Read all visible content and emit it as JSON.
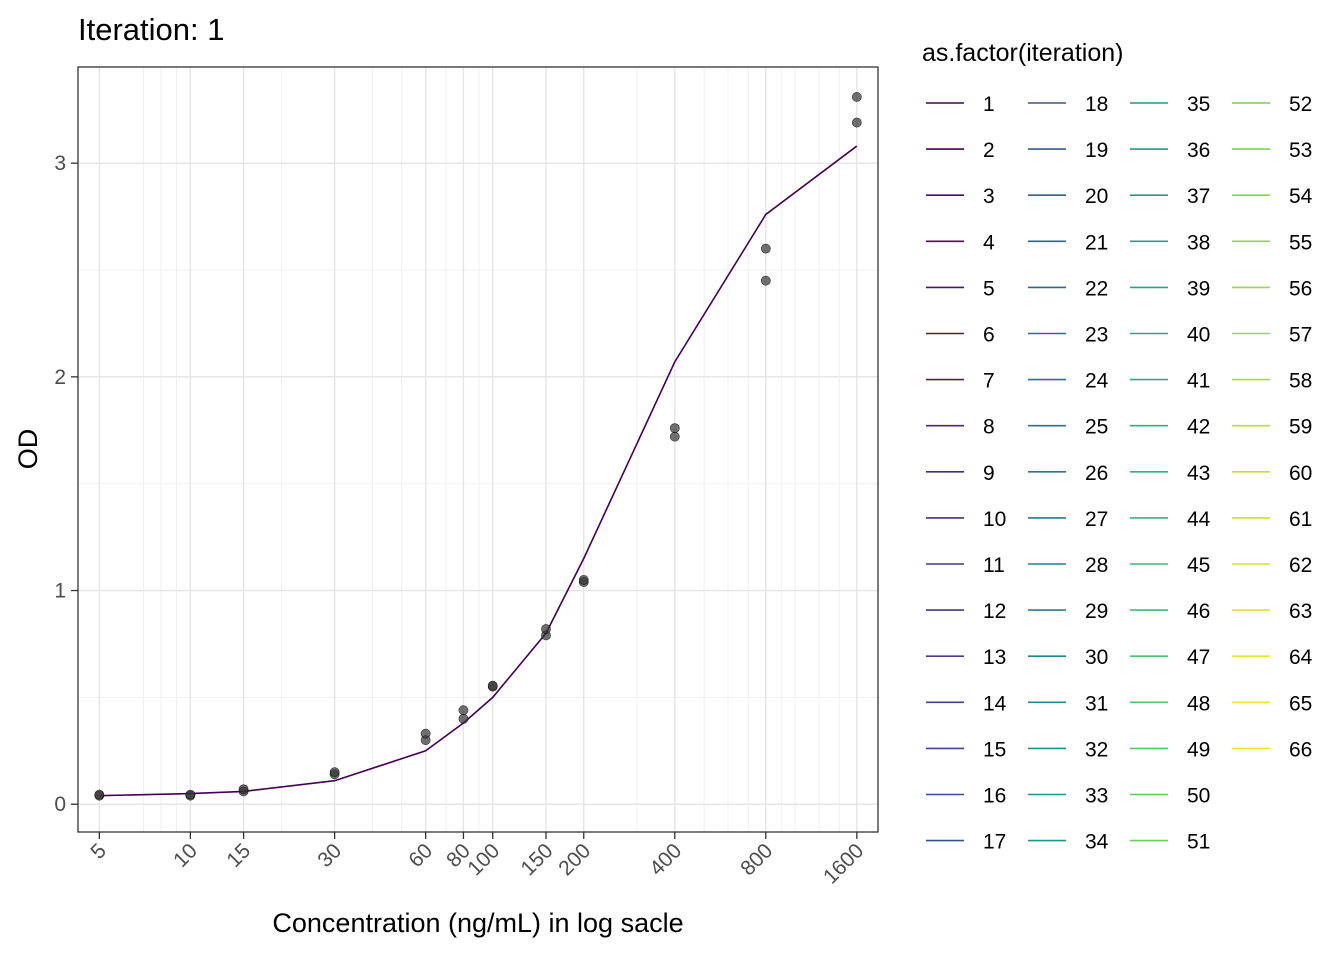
{
  "chart_data": {
    "type": "line",
    "title": "Iteration: 1",
    "xlabel": "Concentration (ng/mL) in log sacle",
    "ylabel": "OD",
    "x_scale": "log10",
    "xlim": [
      4.25,
      1880
    ],
    "ylim": [
      -0.13,
      3.45
    ],
    "x_ticks": [
      5,
      10,
      15,
      30,
      60,
      80,
      100,
      150,
      200,
      400,
      800,
      1600
    ],
    "x_tick_labels": [
      "5",
      "10",
      "15",
      "30",
      "60",
      "80",
      "100",
      "150",
      "200",
      "400",
      "800",
      "1600"
    ],
    "x_minor_breaks": [
      7,
      8,
      9,
      20,
      40,
      50,
      70,
      90,
      300,
      500,
      600,
      700,
      900,
      1000,
      1200,
      1400
    ],
    "y_ticks": [
      0,
      1,
      2,
      3
    ],
    "y_tick_labels": [
      "0",
      "1",
      "2",
      "3"
    ],
    "y_minor_breaks": [
      0.5,
      1.5,
      2.5
    ],
    "grid": true,
    "series": [
      {
        "kind": "line",
        "color": "#440154",
        "x": [
          5,
          10,
          15,
          30,
          60,
          80,
          100,
          150,
          200,
          400,
          800,
          1600
        ],
        "y": [
          0.04,
          0.05,
          0.06,
          0.11,
          0.25,
          0.38,
          0.5,
          0.8,
          1.15,
          2.07,
          2.76,
          3.08
        ]
      },
      {
        "kind": "points",
        "color": "#333333",
        "x": [
          5,
          5,
          10,
          10,
          15,
          15,
          30,
          30,
          60,
          60,
          80,
          80,
          100,
          100,
          150,
          150,
          200,
          200,
          400,
          400,
          800,
          800,
          1600,
          1600
        ],
        "y": [
          0.04,
          0.045,
          0.04,
          0.045,
          0.06,
          0.07,
          0.14,
          0.15,
          0.3,
          0.33,
          0.4,
          0.44,
          0.55,
          0.555,
          0.79,
          0.82,
          1.04,
          1.05,
          1.72,
          1.76,
          2.45,
          2.6,
          3.19,
          3.31
        ]
      }
    ],
    "legend": {
      "title": "as.factor(iteration)",
      "placement": "right",
      "columns": 4,
      "palette": "viridis",
      "entries": [
        "1",
        "2",
        "3",
        "4",
        "5",
        "6",
        "7",
        "8",
        "9",
        "10",
        "11",
        "12",
        "13",
        "14",
        "15",
        "16",
        "17",
        "18",
        "19",
        "20",
        "21",
        "22",
        "23",
        "24",
        "25",
        "26",
        "27",
        "28",
        "29",
        "30",
        "31",
        "32",
        "33",
        "34",
        "35",
        "36",
        "37",
        "38",
        "39",
        "40",
        "41",
        "42",
        "43",
        "44",
        "45",
        "46",
        "47",
        "48",
        "49",
        "50",
        "51",
        "52",
        "53",
        "54",
        "55",
        "56",
        "57",
        "58",
        "59",
        "60",
        "61",
        "62",
        "63",
        "64",
        "65",
        "66"
      ]
    }
  }
}
